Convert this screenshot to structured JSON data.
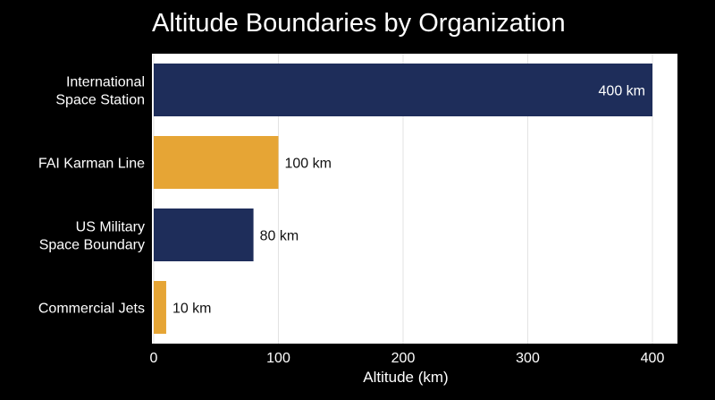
{
  "chart_data": {
    "type": "bar",
    "orientation": "horizontal",
    "title": "Altitude Boundaries by Organization",
    "xlabel": "Altitude (km)",
    "ylabel": "",
    "categories": [
      [
        "International",
        "Space Station"
      ],
      [
        "FAI Karman Line"
      ],
      [
        "US Military",
        "Space Boundary"
      ],
      [
        "Commercial Jets"
      ]
    ],
    "values": [
      400,
      100,
      80,
      10
    ],
    "data_labels": [
      "400 km",
      "100 km",
      "80 km",
      "10 km"
    ],
    "bar_colors": [
      "#1e2d5a",
      "#e6a535",
      "#1e2d5a",
      "#e6a535"
    ],
    "data_label_inside": [
      true,
      false,
      false,
      false
    ],
    "xlim": [
      0,
      400
    ],
    "xticks": [
      0,
      100,
      200,
      300,
      400
    ],
    "xtick_labels": [
      "0",
      "100",
      "200",
      "300",
      "400"
    ],
    "grid": true,
    "plot_background": "#ffffff",
    "page_background": "#000000"
  }
}
